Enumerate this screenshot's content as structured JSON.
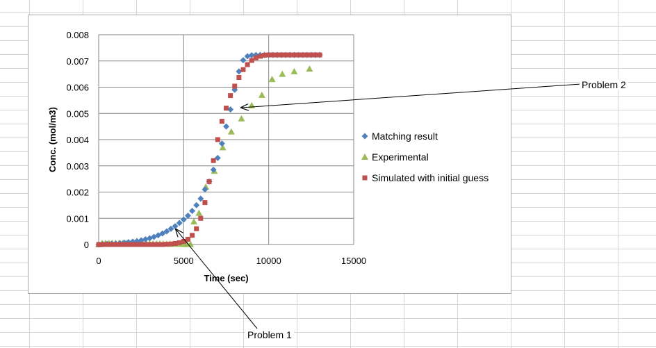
{
  "annotations": {
    "problem_1": "Problem 1",
    "problem_2": "Problem 2"
  },
  "chart_data": {
    "type": "scatter",
    "title": "",
    "xlabel": "Time (sec)",
    "ylabel": "Conc. (mol/m3)",
    "xlim": [
      0,
      15000
    ],
    "ylim": [
      0,
      0.008
    ],
    "x_ticks": [
      0,
      5000,
      10000,
      15000
    ],
    "y_ticks": [
      0,
      0.001,
      0.002,
      0.003,
      0.004,
      0.005,
      0.006,
      0.007,
      0.008
    ],
    "x_tick_labels": [
      "0",
      "5000",
      "10000",
      "15000"
    ],
    "y_tick_labels": [
      "0",
      "0.001",
      "0.002",
      "0.003",
      "0.004",
      "0.005",
      "0.006",
      "0.007",
      "0.008"
    ],
    "grid": true,
    "legend_position": "right",
    "series": [
      {
        "name": "Matching result",
        "marker": "diamond",
        "color": "#4f81bd",
        "x": [
          0,
          250,
          500,
          750,
          1000,
          1250,
          1500,
          1750,
          2000,
          2250,
          2500,
          2750,
          3000,
          3250,
          3500,
          3750,
          4000,
          4250,
          4500,
          4750,
          5000,
          5250,
          5500,
          5750,
          6000,
          6250,
          6500,
          6750,
          7000,
          7250,
          7500,
          7750,
          8000,
          8250,
          8500,
          8750,
          9000,
          9250,
          9500,
          9750,
          10000,
          10250,
          10500,
          10750,
          11000,
          11250,
          11500,
          11750,
          12000,
          12250,
          12500,
          12750,
          13000
        ],
        "y": [
          0,
          1e-05,
          2e-05,
          3e-05,
          4e-05,
          5e-05,
          7e-05,
          9e-05,
          0.00011,
          0.00013,
          0.00016,
          0.0002,
          0.00024,
          0.00029,
          0.00035,
          0.00042,
          0.0005,
          0.0006,
          0.0007,
          0.00082,
          0.00095,
          0.0011,
          0.00128,
          0.0015,
          0.00175,
          0.0021,
          0.0024,
          0.00285,
          0.0033,
          0.00385,
          0.0045,
          0.00515,
          0.0059,
          0.0066,
          0.00703,
          0.00718,
          0.00722,
          0.00723,
          0.00723,
          0.00723,
          0.00723,
          0.00723,
          0.00723,
          0.00723,
          0.00723,
          0.00723,
          0.00723,
          0.00723,
          0.00723,
          0.00723,
          0.00723,
          0.00723,
          0.00723
        ]
      },
      {
        "name": "Experimental",
        "marker": "triangle",
        "color": "#9bbb59",
        "x": [
          0,
          200,
          400,
          600,
          800,
          1000,
          1200,
          1400,
          1600,
          1800,
          2000,
          2200,
          2400,
          2600,
          2800,
          3000,
          3200,
          3400,
          3600,
          3800,
          4000,
          4200,
          4400,
          4600,
          4800,
          5000,
          5200,
          5400,
          5600,
          5900,
          6300,
          6800,
          7300,
          7800,
          8400,
          9000,
          9600,
          10200,
          10800,
          11500,
          12400
        ],
        "y": [
          0,
          5e-05,
          5e-05,
          5e-05,
          5e-05,
          5e-05,
          5e-05,
          5e-05,
          5e-05,
          5e-05,
          4e-05,
          4e-05,
          4e-05,
          4e-05,
          4e-05,
          3e-05,
          3e-05,
          3e-05,
          3e-05,
          3e-05,
          2e-05,
          2e-05,
          2e-05,
          2e-05,
          2e-05,
          1e-05,
          1e-05,
          1e-05,
          0.00087,
          0.0012,
          0.0022,
          0.0028,
          0.0037,
          0.0043,
          0.0048,
          0.0053,
          0.0057,
          0.0063,
          0.0065,
          0.0066,
          0.0067
        ]
      },
      {
        "name": "Simulated with initial guess",
        "marker": "square",
        "color": "#c0504d",
        "x": [
          0,
          250,
          500,
          750,
          1000,
          1250,
          1500,
          1750,
          2000,
          2250,
          2500,
          2750,
          3000,
          3250,
          3500,
          3750,
          4000,
          4250,
          4500,
          4750,
          5000,
          5250,
          5500,
          5750,
          6000,
          6250,
          6500,
          6750,
          7000,
          7250,
          7500,
          7750,
          8000,
          8250,
          8500,
          8750,
          9000,
          9250,
          9500,
          9750,
          10000,
          10250,
          10500,
          10750,
          11000,
          11250,
          11500,
          11750,
          12000,
          12250,
          12500,
          12750,
          13000
        ],
        "y": [
          0,
          0,
          0,
          0,
          0,
          0,
          0,
          0,
          0,
          0,
          0,
          0,
          0,
          0,
          0,
          0,
          1e-05,
          2e-05,
          4e-05,
          7e-05,
          0.00012,
          0.0002,
          0.00035,
          0.0006,
          0.001,
          0.0016,
          0.0024,
          0.0032,
          0.004,
          0.0047,
          0.0052,
          0.00568,
          0.00604,
          0.00637,
          0.00667,
          0.00686,
          0.00702,
          0.00712,
          0.00718,
          0.00722,
          0.00723,
          0.00723,
          0.00723,
          0.00723,
          0.00723,
          0.00723,
          0.00723,
          0.00723,
          0.00723,
          0.00723,
          0.00723,
          0.00723,
          0.00723
        ]
      }
    ]
  }
}
